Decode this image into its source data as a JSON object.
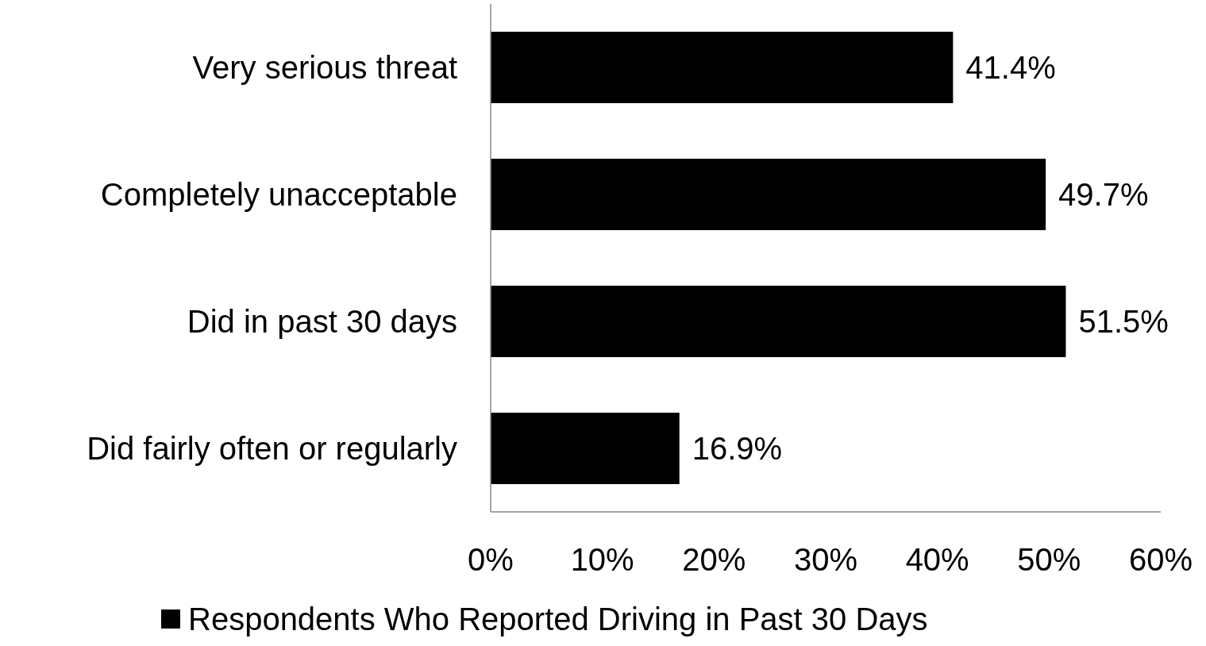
{
  "chart_data": {
    "type": "bar",
    "orientation": "horizontal",
    "categories": [
      "Very serious threat",
      "Completely unacceptable",
      "Did in past 30 days",
      "Did fairly often or regularly"
    ],
    "series": [
      {
        "name": "Respondents Who Reported Driving in Past 30 Days",
        "color": "#000000",
        "values": [
          41.4,
          49.7,
          51.5,
          16.9
        ],
        "value_labels": [
          "41.4%",
          "49.7%",
          "51.5%",
          "16.9%"
        ]
      }
    ],
    "xlim": [
      0,
      60
    ],
    "xticks": [
      {
        "value": 0,
        "label": "0%"
      },
      {
        "value": 10,
        "label": "10%"
      },
      {
        "value": 20,
        "label": "20%"
      },
      {
        "value": 30,
        "label": "30%"
      },
      {
        "value": 40,
        "label": "40%"
      },
      {
        "value": 50,
        "label": "50%"
      },
      {
        "value": 60,
        "label": "60%"
      }
    ],
    "grid": false,
    "legend": "bottom"
  }
}
